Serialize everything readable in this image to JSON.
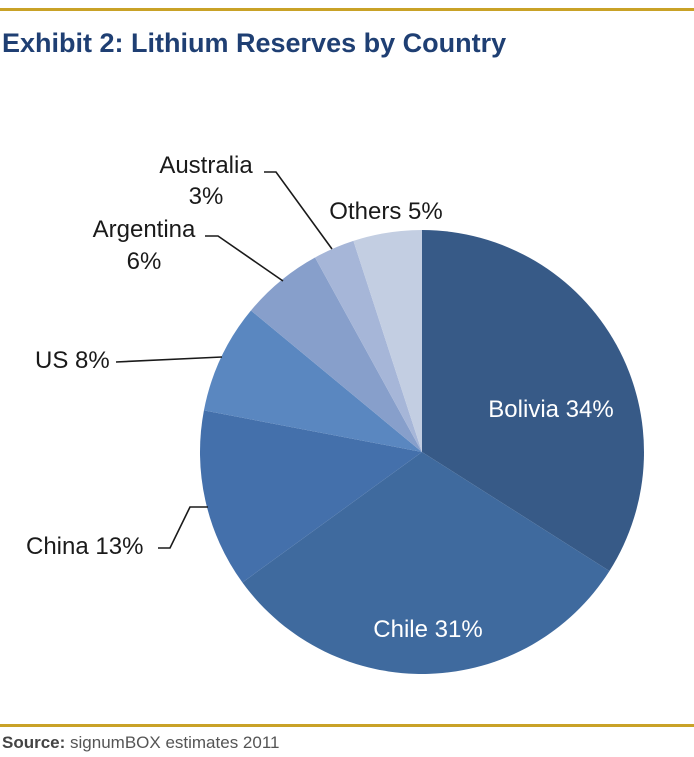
{
  "title": "Exhibit 2: Lithium Reserves by Country",
  "source": {
    "label": "Source:",
    "text": " signumBOX estimates 2011"
  },
  "colors": {
    "rule": "#c9a227",
    "title": "#1f3f73",
    "slices": [
      "#375a87",
      "#3f6a9e",
      "#4470ab",
      "#5a87c0",
      "#879fcb",
      "#a6b6d8",
      "#c3cee2"
    ]
  },
  "chart_data": {
    "type": "pie",
    "start": "12 o'clock",
    "direction": "clockwise",
    "slices": [
      {
        "name": "Bolivia",
        "value": 34,
        "label": "Bolivia 34%",
        "label_lines": [
          "Bolivia 34%"
        ],
        "label_placement": "inside"
      },
      {
        "name": "Chile",
        "value": 31,
        "label": "Chile 31%",
        "label_lines": [
          "Chile 31%"
        ],
        "label_placement": "inside"
      },
      {
        "name": "China",
        "value": 13,
        "label": "China 13%",
        "label_lines": [
          "China 13%"
        ],
        "label_placement": "outside"
      },
      {
        "name": "US",
        "value": 8,
        "label": "US 8%",
        "label_lines": [
          "US 8%"
        ],
        "label_placement": "outside"
      },
      {
        "name": "Argentina",
        "value": 6,
        "label": "Argentina 6%",
        "label_lines": [
          "Argentina",
          "6%"
        ],
        "label_placement": "outside"
      },
      {
        "name": "Australia",
        "value": 3,
        "label": "Australia 3%",
        "label_lines": [
          "Australia",
          "3%"
        ],
        "label_placement": "outside"
      },
      {
        "name": "Others",
        "value": 5,
        "label": "Others 5%",
        "label_lines": [
          "Others 5%"
        ],
        "label_placement": "outside"
      }
    ]
  }
}
